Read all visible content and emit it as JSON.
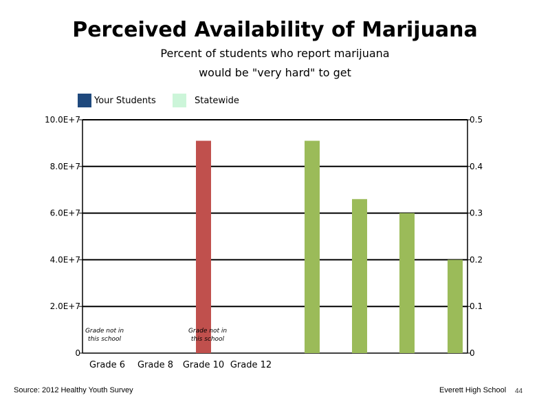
{
  "title": "Perceived Availability of Marijuana",
  "subtitle_line1": "Percent of students who report marijuana",
  "subtitle_line2": "would be \"very hard\" to get",
  "footer": {
    "source": "Source: 2012 Healthy Youth Survey",
    "school": "Everett High School",
    "page": "44"
  },
  "colors": {
    "your_students": "#1f497d",
    "statewide": "#ccf5d9",
    "bar_red": "#c0504d",
    "bar_green": "#9bbb59"
  },
  "chart_data": {
    "type": "bar",
    "legend": [
      "Your Students",
      "Statewide"
    ],
    "legend_position": "top-left",
    "categories": [
      "Grade 6",
      "Grade 8",
      "Grade 10",
      "Grade 12"
    ],
    "left_axis": {
      "ylim": [
        0,
        100000000
      ],
      "ticks": [
        "0",
        "2.0E+7",
        "4.0E+7",
        "6.0E+7",
        "8.0E+7",
        "10.0E+7"
      ]
    },
    "right_axis": {
      "ylim": [
        0,
        0.5
      ],
      "ticks": [
        "0",
        "0.1",
        "0.2",
        "0.3",
        "0.4",
        "0.5"
      ]
    },
    "grid": true,
    "bars": [
      {
        "axis": "left",
        "value": 91000000,
        "color": "#c0504d"
      },
      {
        "axis": "right",
        "value": 0.455,
        "color": "#9bbb59"
      },
      {
        "axis": "right",
        "value": 0.33,
        "color": "#9bbb59"
      },
      {
        "axis": "right",
        "value": 0.3,
        "color": "#9bbb59"
      },
      {
        "axis": "right",
        "value": 0.2,
        "color": "#9bbb59"
      }
    ],
    "annotations": [
      {
        "lines": [
          "Grade not in",
          "this school"
        ]
      },
      {
        "lines": [
          "Grade not in",
          "this school"
        ]
      }
    ]
  }
}
